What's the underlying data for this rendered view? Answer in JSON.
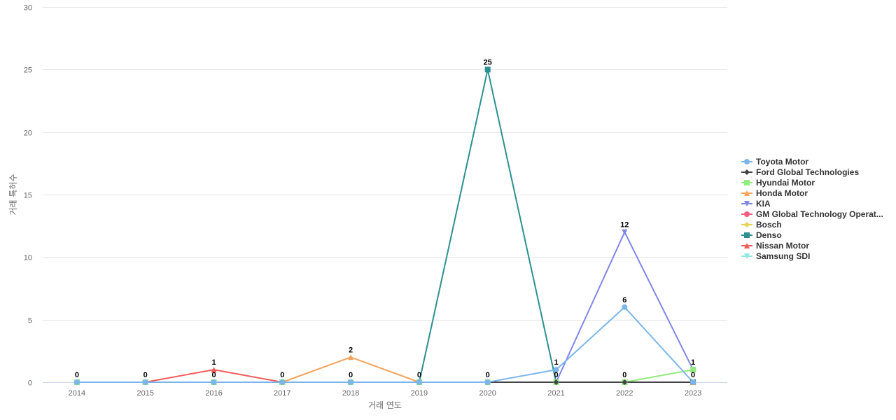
{
  "chart_data": {
    "type": "line",
    "title": "",
    "xlabel": "거래 연도",
    "ylabel": "거래 특허수",
    "ylim": [
      0,
      30
    ],
    "yticks": [
      0,
      5,
      10,
      15,
      20,
      25,
      30
    ],
    "x": [
      "2014",
      "2015",
      "2016",
      "2017",
      "2018",
      "2019",
      "2020",
      "2021",
      "2022",
      "2023"
    ],
    "grid": true,
    "legend_position": "right",
    "series": [
      {
        "name": "Toyota Motor",
        "color": "#7cb5ec",
        "marker": "circle",
        "values": [
          0,
          0,
          0,
          0,
          0,
          0,
          0,
          1,
          6,
          0
        ]
      },
      {
        "name": "Ford Global Technologies",
        "color": "#434348",
        "marker": "diamond",
        "values": [
          0,
          0,
          0,
          0,
          0,
          0,
          0,
          0,
          0,
          0
        ]
      },
      {
        "name": "Hyundai Motor",
        "color": "#90ed7d",
        "marker": "square",
        "values": [
          0,
          0,
          0,
          0,
          0,
          0,
          0,
          0,
          0,
          1
        ]
      },
      {
        "name": "Honda Motor",
        "color": "#f7a35c",
        "marker": "triangle",
        "values": [
          0,
          0,
          0,
          0,
          2,
          0,
          0,
          0,
          0,
          0
        ]
      },
      {
        "name": "KIA",
        "color": "#8085e9",
        "marker": "triangle-down",
        "values": [
          0,
          0,
          0,
          0,
          0,
          0,
          0,
          0,
          12,
          1
        ]
      },
      {
        "name": "GM Global Technology Operat...",
        "color": "#f15c80",
        "marker": "circle",
        "values": [
          0,
          0,
          0,
          0,
          0,
          0,
          0,
          0,
          0,
          0
        ]
      },
      {
        "name": "Bosch",
        "color": "#e4d354",
        "marker": "diamond",
        "values": [
          0,
          0,
          0,
          0,
          0,
          0,
          0,
          0,
          0,
          0
        ]
      },
      {
        "name": "Denso",
        "color": "#2b908f",
        "marker": "square",
        "values": [
          0,
          0,
          0,
          0,
          0,
          0,
          25,
          0,
          0,
          0
        ]
      },
      {
        "name": "Nissan Motor",
        "color": "#f45b5b",
        "marker": "triangle",
        "values": [
          0,
          0,
          1,
          0,
          0,
          0,
          0,
          0,
          0,
          0
        ]
      },
      {
        "name": "Samsung SDI",
        "color": "#91e8e1",
        "marker": "triangle-down",
        "values": [
          0,
          0,
          0,
          0,
          0,
          0,
          0,
          0,
          0,
          0
        ]
      }
    ],
    "data_labels": [
      {
        "x": "2014",
        "y": 0,
        "text": "0"
      },
      {
        "x": "2015",
        "y": 0,
        "text": "0"
      },
      {
        "x": "2016",
        "y": 1,
        "text": "1"
      },
      {
        "x": "2016",
        "y": 0,
        "text": "0"
      },
      {
        "x": "2017",
        "y": 0,
        "text": "0"
      },
      {
        "x": "2018",
        "y": 2,
        "text": "2"
      },
      {
        "x": "2018",
        "y": 0,
        "text": "0"
      },
      {
        "x": "2019",
        "y": 0,
        "text": "0"
      },
      {
        "x": "2020",
        "y": 25,
        "text": "25"
      },
      {
        "x": "2020",
        "y": 0,
        "text": "0"
      },
      {
        "x": "2021",
        "y": 1,
        "text": "1"
      },
      {
        "x": "2021",
        "y": 0,
        "text": "0"
      },
      {
        "x": "2022",
        "y": 12,
        "text": "12"
      },
      {
        "x": "2022",
        "y": 6,
        "text": "6"
      },
      {
        "x": "2022",
        "y": 0,
        "text": "0"
      },
      {
        "x": "2023",
        "y": 1,
        "text": "1"
      },
      {
        "x": "2023",
        "y": 0,
        "text": "0"
      }
    ]
  }
}
